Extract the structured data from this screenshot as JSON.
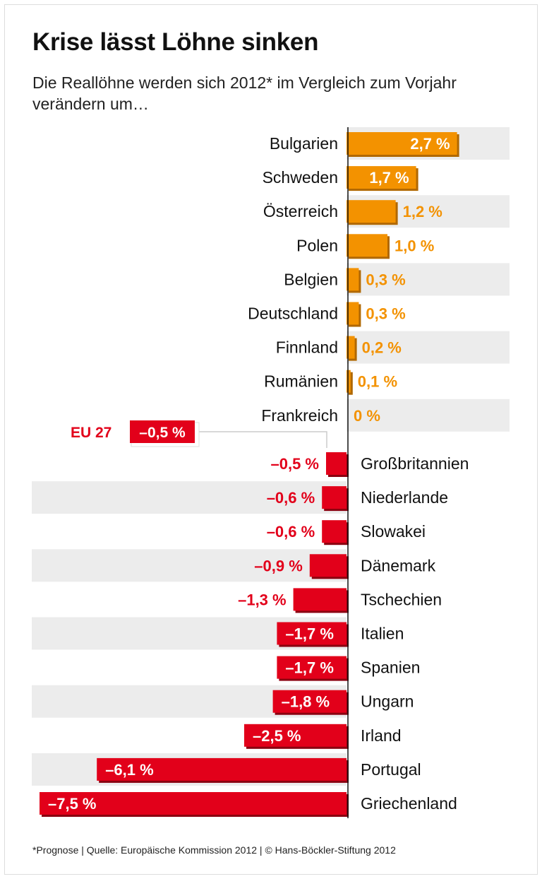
{
  "title": "Krise lässt Löhne sinken",
  "subtitle": "Die Reallöhne werden sich 2012* im Vergleich zum Vorjahr verändern um…",
  "footer": "*Prognose | Quelle: Europäische Kommission 2012 | © Hans-Böckler-Stiftung 2012",
  "colors": {
    "positive": "#f39200",
    "positive_shadow": "#b06800",
    "negative": "#e2001a",
    "negative_shadow": "#8a0010",
    "band": "#ececec"
  },
  "chart_data": {
    "type": "bar",
    "orientation": "horizontal",
    "unit": "%",
    "categories": [
      "Bulgarien",
      "Schweden",
      "Österreich",
      "Polen",
      "Belgien",
      "Deutschland",
      "Finnland",
      "Rumänien",
      "Frankreich",
      "Großbritannien",
      "Niederlande",
      "Slowakei",
      "Dänemark",
      "Tschechien",
      "Italien",
      "Spanien",
      "Ungarn",
      "Irland",
      "Portugal",
      "Griechenland"
    ],
    "values": [
      2.7,
      1.7,
      1.2,
      1.0,
      0.3,
      0.3,
      0.2,
      0.1,
      0,
      -0.5,
      -0.6,
      -0.6,
      -0.9,
      -1.3,
      -1.7,
      -1.7,
      -1.8,
      -2.5,
      -6.1,
      -7.5
    ],
    "labels": [
      "2,7 %",
      "1,7 %",
      "1,2 %",
      "1,0 %",
      "0,3 %",
      "0,3 %",
      "0,2 %",
      "0,1 %",
      "0 %",
      "–0,5 %",
      "–0,6 %",
      "–0,6 %",
      "–0,9 %",
      "–1,3 %",
      "–1,7 %",
      "–1,7 %",
      "–1,8 %",
      "–2,5 %",
      "–6,1 %",
      "–7,5 %"
    ],
    "annotation": {
      "label": "EU 27",
      "value": -0.5,
      "value_label": "–0,5 %"
    }
  }
}
